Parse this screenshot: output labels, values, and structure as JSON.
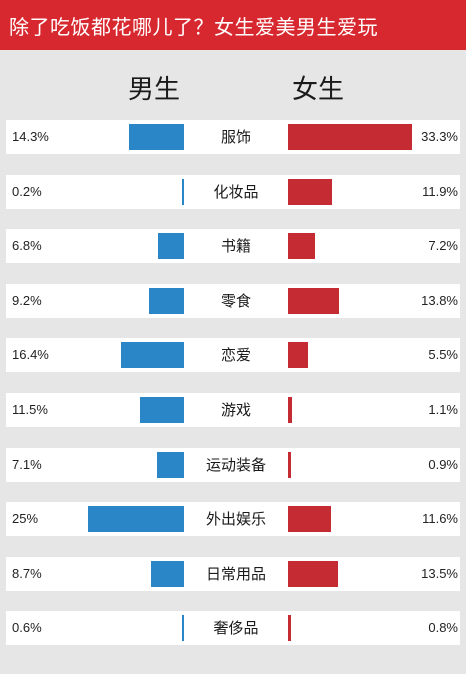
{
  "title": "除了吃饭都花哪儿了？女生爱美男生爱玩",
  "colors": {
    "male": "#2b86c8",
    "female": "#c42b32",
    "title_bg": "#d8282f"
  },
  "chart_data": {
    "type": "bar",
    "title": "除了吃饭都花哪儿了？女生爱美男生爱玩",
    "categories": [
      "服饰",
      "化妆品",
      "书籍",
      "零食",
      "恋爱",
      "游戏",
      "运动装备",
      "外出娱乐",
      "日常用品",
      "奢侈品"
    ],
    "series": [
      {
        "name": "男生",
        "values": [
          14.3,
          0.2,
          6.8,
          9.2,
          16.4,
          11.5,
          7.1,
          25,
          8.7,
          0.6
        ],
        "labels": [
          "14.3%",
          "0.2%",
          "6.8%",
          "9.2%",
          "16.4%",
          "11.5%",
          "7.1%",
          "25%",
          "8.7%",
          "0.6%"
        ]
      },
      {
        "name": "女生",
        "values": [
          33.3,
          11.9,
          7.2,
          13.8,
          5.5,
          1.1,
          0.9,
          11.6,
          13.5,
          0.8
        ],
        "labels": [
          "33.3%",
          "11.9%",
          "7.2%",
          "13.8%",
          "5.5%",
          "1.1%",
          "0.9%",
          "11.6%",
          "13.5%",
          "0.8%"
        ]
      }
    ]
  }
}
